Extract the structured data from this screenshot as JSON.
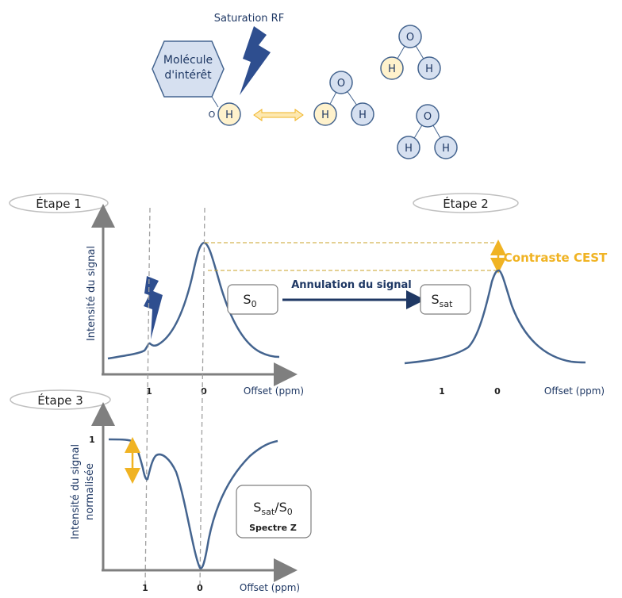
{
  "molecule": {
    "label_line1": "Molécule",
    "label_line2": "d'intérêt",
    "saturation_label": "Saturation RF",
    "o_label": "O",
    "h_label": "H",
    "water_o": "O",
    "water_h": "H"
  },
  "step1": {
    "label": "Étape 1",
    "ylabel": "Intensité du signal",
    "xlabel": "Offset (ppm)",
    "tick_1": "1",
    "tick_0": "0",
    "box_label": "S",
    "box_sub": "0"
  },
  "step2": {
    "label": "Étape 2",
    "xlabel": "Offset (ppm)",
    "tick_1": "1",
    "tick_0": "0",
    "box_label": "S",
    "box_sub": "sat",
    "arrow_label": "Annulation du signal",
    "contrast_label": "Contraste CEST"
  },
  "step3": {
    "label": "Étape 3",
    "ylabel_line1": "Intensité du signal",
    "ylabel_line2": "normalisée",
    "ytick_1": "1",
    "xlabel": "Offset (ppm)",
    "tick_1": "1",
    "tick_0": "0",
    "box_s": "S",
    "box_sub_sat": "sat",
    "box_slash": "/S",
    "box_sub_0": "0",
    "box_caption": "Spectre Z"
  },
  "colors": {
    "curve": "#44648f",
    "axis": "#7f7f7f",
    "accent": "#f0b323",
    "atom_fill": "#d6e0f0",
    "h_fill": "#fff2cc",
    "atom_stroke": "#44648f",
    "dark_arrow": "#1f3864",
    "lightning": "#2e4e8f"
  }
}
